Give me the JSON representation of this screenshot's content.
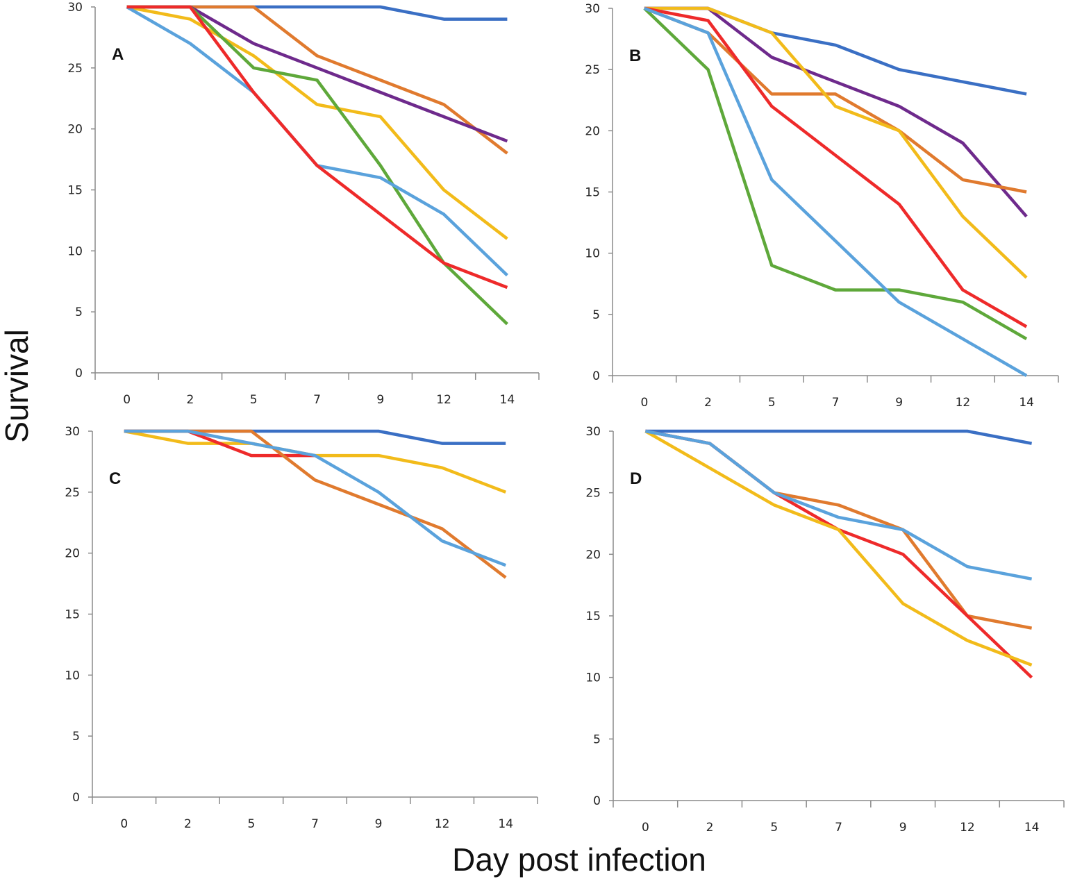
{
  "figure": {
    "ylabel": "Survival",
    "xlabel": "Day post infection"
  },
  "colors": {
    "dark_blue": "#3a6fc4",
    "light_blue": "#5aa2dc",
    "orange": "#e07a2e",
    "yellow": "#f2bb1a",
    "red": "#ee2a2a",
    "green": "#5ea83a",
    "purple": "#6e2a8c",
    "axis": "#8a8a8a"
  },
  "chart_data": [
    {
      "type": "line",
      "panel_label": "A",
      "categories": [
        "0",
        "2",
        "5",
        "7",
        "9",
        "12",
        "14"
      ],
      "yticks": [
        "0",
        "5",
        "10",
        "15",
        "20",
        "25",
        "30"
      ],
      "ylim": [
        0,
        30
      ],
      "series": [
        {
          "name": "dark blue",
          "color": "#3a6fc4",
          "values": [
            30,
            30,
            30,
            30,
            30,
            29,
            29
          ]
        },
        {
          "name": "orange",
          "color": "#e07a2e",
          "values": [
            30,
            30,
            30,
            26,
            24,
            22,
            18
          ]
        },
        {
          "name": "purple",
          "color": "#6e2a8c",
          "values": [
            30,
            30,
            27,
            25,
            23,
            21,
            19
          ]
        },
        {
          "name": "yellow",
          "color": "#f2bb1a",
          "values": [
            30,
            29,
            26,
            22,
            21,
            15,
            11
          ]
        },
        {
          "name": "green",
          "color": "#5ea83a",
          "values": [
            30,
            30,
            25,
            24,
            17,
            9,
            4
          ]
        },
        {
          "name": "light blue",
          "color": "#5aa2dc",
          "values": [
            30,
            27,
            23,
            17,
            16,
            13,
            8
          ]
        },
        {
          "name": "red",
          "color": "#ee2a2a",
          "values": [
            30,
            30,
            23,
            17,
            13,
            9,
            7
          ]
        }
      ]
    },
    {
      "type": "line",
      "panel_label": "B",
      "categories": [
        "0",
        "2",
        "5",
        "7",
        "9",
        "12",
        "14"
      ],
      "yticks": [
        "0",
        "5",
        "10",
        "15",
        "20",
        "25",
        "30"
      ],
      "ylim": [
        0,
        30
      ],
      "series": [
        {
          "name": "dark blue",
          "color": "#3a6fc4",
          "values": [
            30,
            30,
            28,
            27,
            25,
            24,
            23
          ]
        },
        {
          "name": "purple",
          "color": "#6e2a8c",
          "values": [
            30,
            30,
            26,
            24,
            22,
            19,
            13
          ]
        },
        {
          "name": "orange",
          "color": "#e07a2e",
          "values": [
            30,
            28,
            23,
            23,
            20,
            16,
            15
          ]
        },
        {
          "name": "yellow",
          "color": "#f2bb1a",
          "values": [
            30,
            30,
            28,
            22,
            20,
            13,
            8
          ]
        },
        {
          "name": "red",
          "color": "#ee2a2a",
          "values": [
            30,
            29,
            22,
            18,
            14,
            7,
            4
          ]
        },
        {
          "name": "green",
          "color": "#5ea83a",
          "values": [
            30,
            25,
            9,
            7,
            7,
            6,
            3
          ]
        },
        {
          "name": "light blue",
          "color": "#5aa2dc",
          "values": [
            30,
            28,
            16,
            11,
            6,
            3,
            0
          ]
        }
      ]
    },
    {
      "type": "line",
      "panel_label": "C",
      "categories": [
        "0",
        "2",
        "5",
        "7",
        "9",
        "12",
        "14"
      ],
      "yticks": [
        "0",
        "5",
        "10",
        "15",
        "20",
        "25",
        "30"
      ],
      "ylim": [
        0,
        30
      ],
      "series": [
        {
          "name": "dark blue",
          "color": "#3a6fc4",
          "values": [
            30,
            30,
            30,
            30,
            30,
            29,
            29
          ]
        },
        {
          "name": "yellow",
          "color": "#f2bb1a",
          "values": [
            30,
            29,
            29,
            28,
            28,
            27,
            25
          ]
        },
        {
          "name": "red",
          "color": "#ee2a2a",
          "values": [
            30,
            30,
            28,
            28,
            null,
            null,
            null
          ]
        },
        {
          "name": "orange",
          "color": "#e07a2e",
          "values": [
            30,
            30,
            30,
            26,
            24,
            22,
            18
          ]
        },
        {
          "name": "light blue",
          "color": "#5aa2dc",
          "values": [
            30,
            30,
            29,
            28,
            25,
            21,
            19
          ]
        }
      ]
    },
    {
      "type": "line",
      "panel_label": "D",
      "categories": [
        "0",
        "2",
        "5",
        "7",
        "9",
        "12",
        "14"
      ],
      "yticks": [
        "0",
        "5",
        "10",
        "15",
        "20",
        "25",
        "30"
      ],
      "ylim": [
        0,
        30
      ],
      "series": [
        {
          "name": "dark blue",
          "color": "#3a6fc4",
          "values": [
            30,
            30,
            30,
            30,
            30,
            30,
            29
          ]
        },
        {
          "name": "orange",
          "color": "#e07a2e",
          "values": [
            30,
            29,
            25,
            24,
            22,
            15,
            14
          ]
        },
        {
          "name": "red",
          "color": "#ee2a2a",
          "values": [
            30,
            29,
            25,
            22,
            20,
            15,
            10
          ]
        },
        {
          "name": "yellow",
          "color": "#f2bb1a",
          "values": [
            30,
            27,
            24,
            22,
            16,
            13,
            11
          ]
        },
        {
          "name": "light blue",
          "color": "#5aa2dc",
          "values": [
            30,
            29,
            25,
            23,
            22,
            19,
            18
          ]
        }
      ]
    }
  ]
}
